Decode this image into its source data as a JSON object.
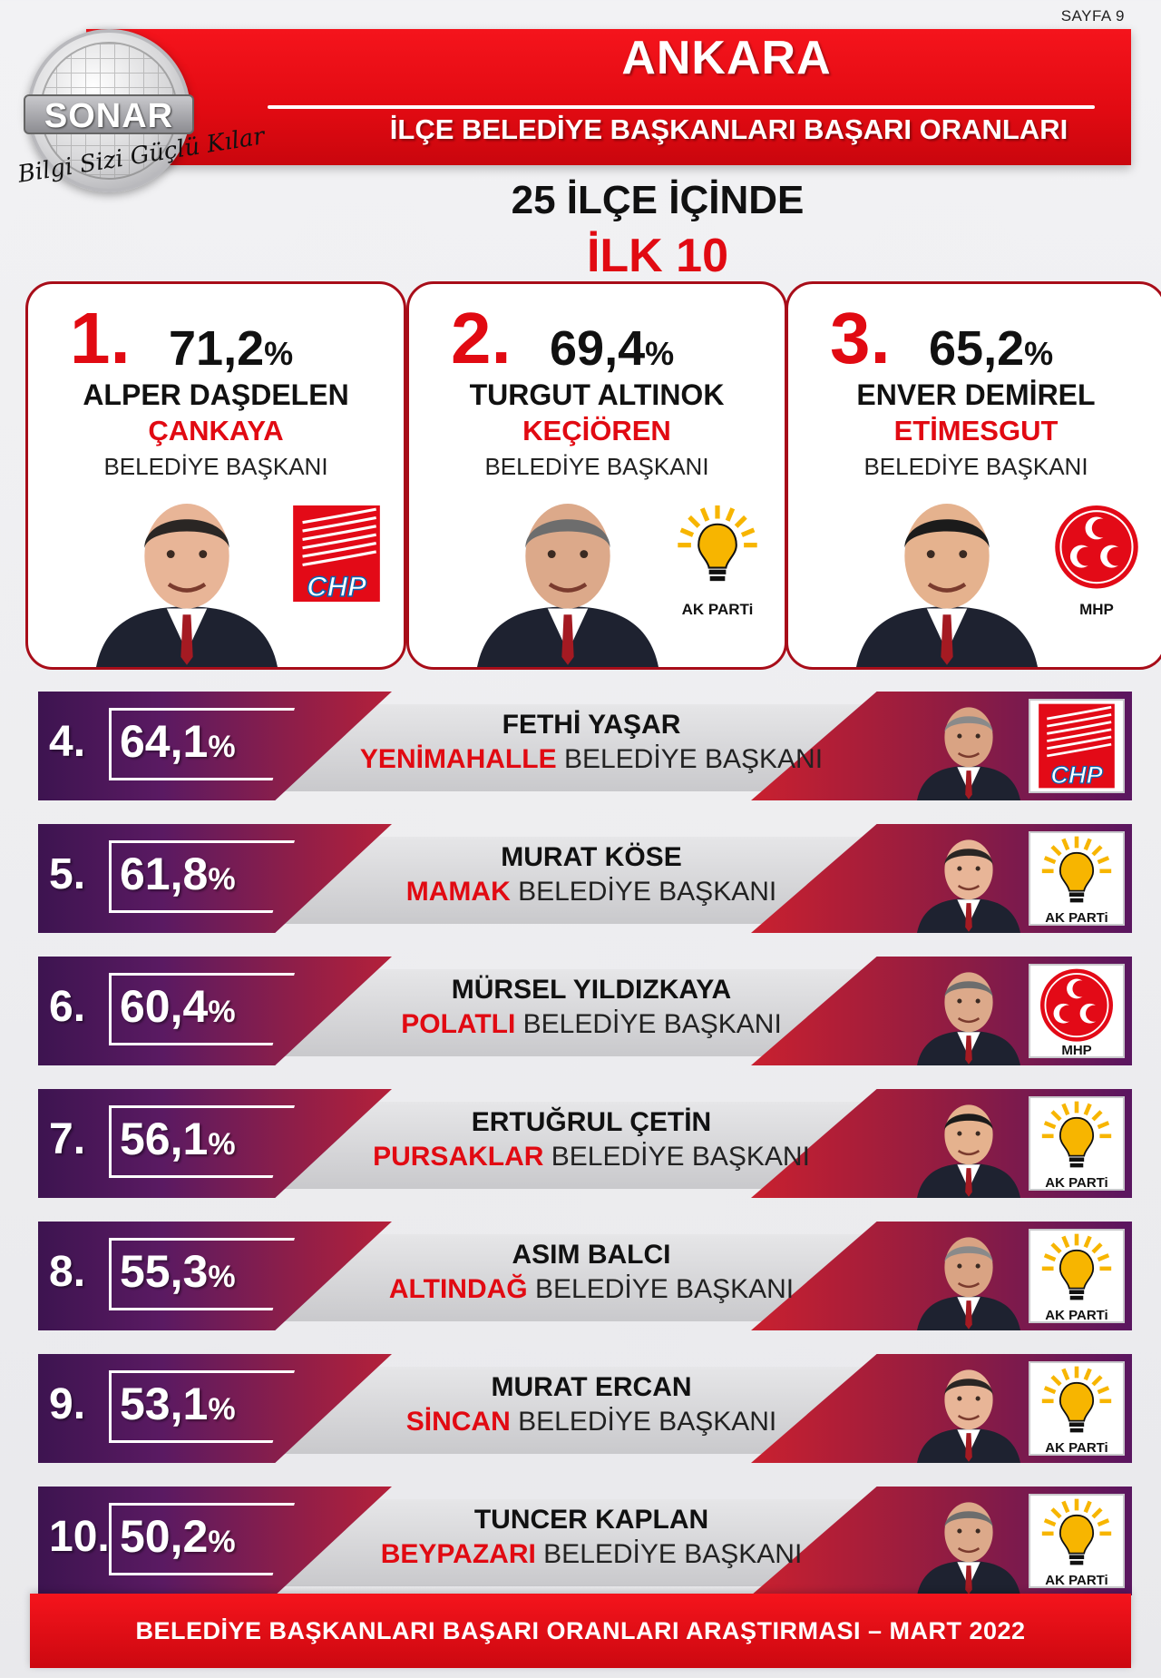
{
  "page": "SAYFA 9",
  "header": {
    "title": "ANKARA",
    "subtitle": "İLÇE BELEDİYE BAŞKANLARI BAŞARI ORANLARI",
    "logo_text": "SONAR",
    "slogan": "Bilgi Sizi Güçlü Kılar"
  },
  "section": {
    "line1": "25 İLÇE İÇİNDE",
    "line2": "İLK 10"
  },
  "top3": [
    {
      "rank": "1.",
      "pct": "71,2",
      "name": "ALPER DAŞDELEN",
      "district": "ÇANKAYA",
      "role": "BELEDİYE BAŞKANI",
      "party": "CHP"
    },
    {
      "rank": "2.",
      "pct": "69,4",
      "name": "TURGUT ALTINOK",
      "district": "KEÇİÖREN",
      "role": "BELEDİYE BAŞKANI",
      "party": "AK PARTi"
    },
    {
      "rank": "3.",
      "pct": "65,2",
      "name": "ENVER DEMİREL",
      "district": "ETİMESGUT",
      "role": "BELEDİYE BAŞKANI",
      "party": "MHP"
    }
  ],
  "percent_symbol": "%",
  "list": [
    {
      "rank": "4.",
      "pct": "64,1",
      "name": "FETHİ YAŞAR",
      "district": "YENİMAHALLE",
      "role": "BELEDİYE BAŞKANI",
      "party": "CHP"
    },
    {
      "rank": "5.",
      "pct": "61,8",
      "name": "MURAT KÖSE",
      "district": "MAMAK",
      "role": "BELEDİYE BAŞKANI",
      "party": "AK PARTi"
    },
    {
      "rank": "6.",
      "pct": "60,4",
      "name": "MÜRSEL YILDIZKAYA",
      "district": "POLATLI",
      "role": "BELEDİYE BAŞKANI",
      "party": "MHP"
    },
    {
      "rank": "7.",
      "pct": "56,1",
      "name": "ERTUĞRUL ÇETİN",
      "district": "PURSAKLAR",
      "role": "BELEDİYE BAŞKANI",
      "party": "AK PARTi"
    },
    {
      "rank": "8.",
      "pct": "55,3",
      "name": "ASIM BALCI",
      "district": "ALTINDAĞ",
      "role": "BELEDİYE BAŞKANI",
      "party": "AK PARTi"
    },
    {
      "rank": "9.",
      "pct": "53,1",
      "name": "MURAT ERCAN",
      "district": "SİNCAN",
      "role": "BELEDİYE BAŞKANI",
      "party": "AK PARTi"
    },
    {
      "rank": "10.",
      "pct": "50,2",
      "name": "TUNCER KAPLAN",
      "district": "BEYPAZARI",
      "role": "BELEDİYE BAŞKANI",
      "party": "AK PARTi"
    }
  ],
  "footer": "BELEDİYE BAŞKANLARI BAŞARI ORANLARI ARAŞTIRMASI – MART 2022",
  "colors": {
    "red": "#e10a12",
    "purple": "#3d1450",
    "chp_red": "#e30a17",
    "akp_blue": "#0b64b0",
    "akp_yellow": "#f7b500"
  }
}
